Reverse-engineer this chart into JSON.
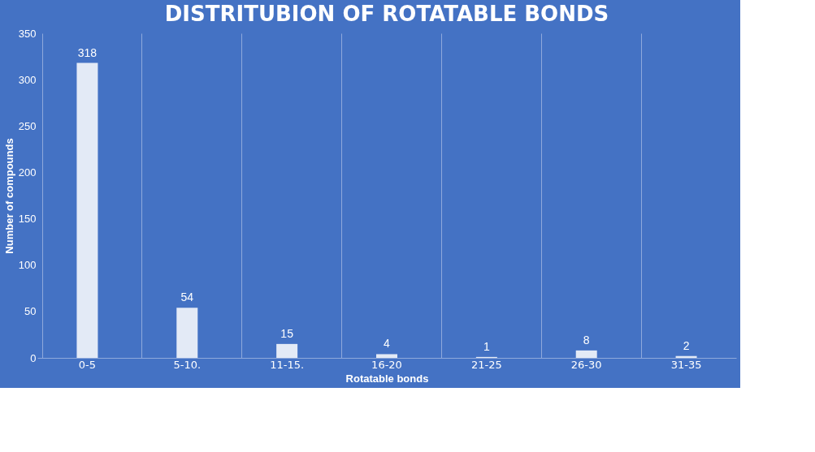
{
  "chart_data": {
    "type": "bar",
    "title": "DISTRITUBION  OF ROTATABLE  BONDS",
    "xlabel": "Rotatable bonds",
    "ylabel": "Number of compounds",
    "categories": [
      "0-5",
      "5-10.",
      "11-15.",
      "16-20",
      "21-25",
      "26-30",
      "31-35"
    ],
    "values": [
      318,
      54,
      15,
      4,
      1,
      8,
      2
    ],
    "color": "#ffffff",
    "ylim": [
      0,
      350
    ],
    "yticks": [
      0,
      50,
      100,
      150,
      200,
      250,
      300,
      350
    ],
    "grid": "x",
    "data_labels": true
  }
}
